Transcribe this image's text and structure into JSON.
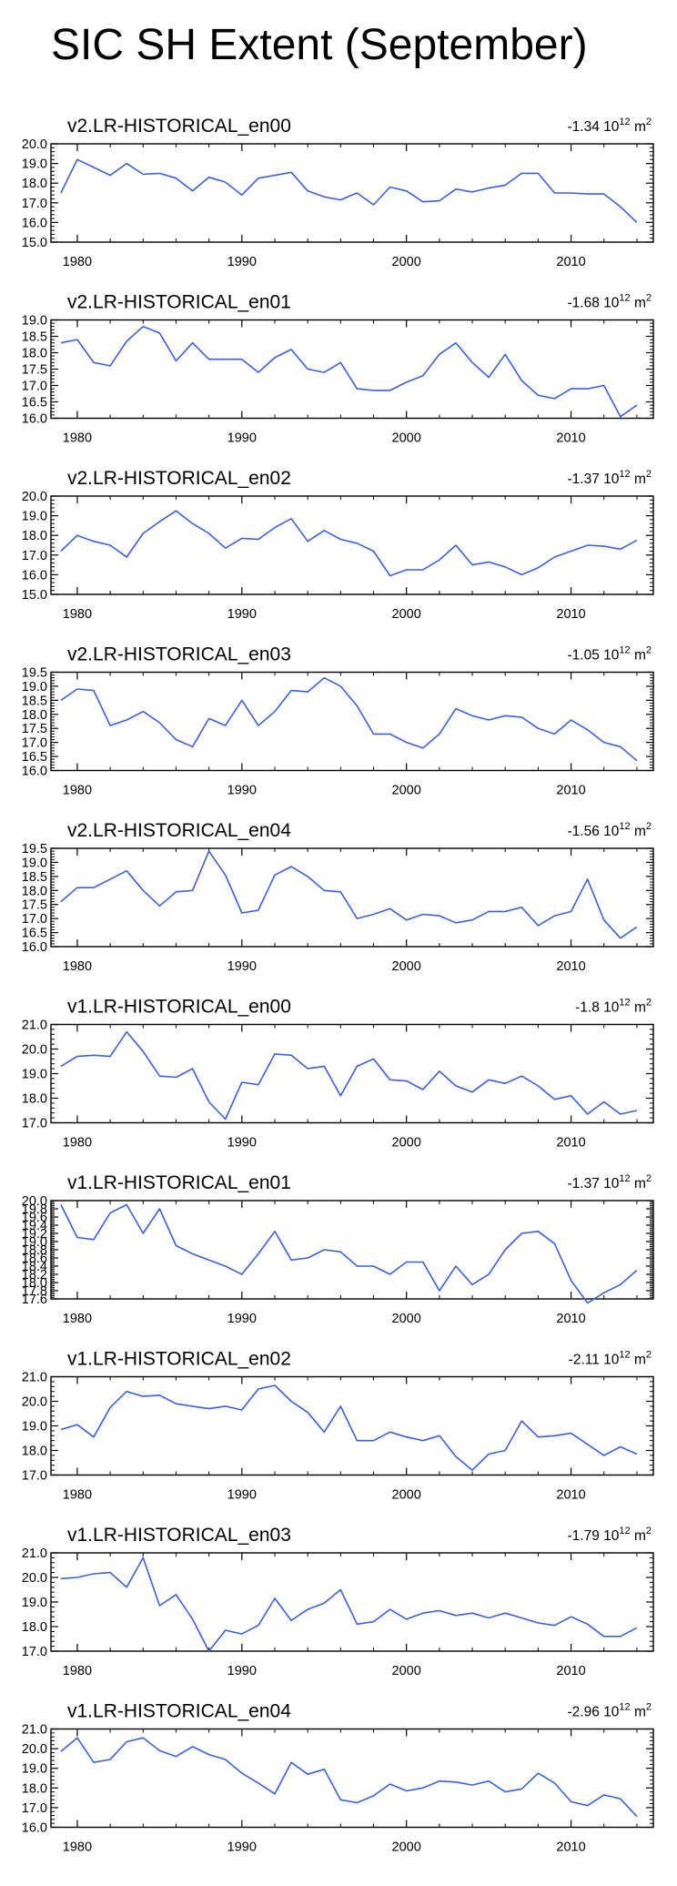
{
  "page_title": "SIC SH Extent (September)",
  "colors": {
    "line": "#3b5fe0",
    "axis": "#000000"
  },
  "chart_data": [
    {
      "type": "line",
      "title": "v2.LR-HISTORICAL_en00",
      "trend_value": "-1.34",
      "trend_unit": "10",
      "trend_exp": "12",
      "trend_suffix": "m",
      "trend_suffix_exp": "2",
      "x": [
        1979,
        1980,
        1981,
        1982,
        1983,
        1984,
        1985,
        1986,
        1987,
        1988,
        1989,
        1990,
        1991,
        1992,
        1993,
        1994,
        1995,
        1996,
        1997,
        1998,
        1999,
        2000,
        2001,
        2002,
        2003,
        2004,
        2005,
        2006,
        2007,
        2008,
        2009,
        2010,
        2011,
        2012,
        2013,
        2014
      ],
      "y": [
        17.5,
        19.2,
        18.8,
        18.4,
        19.0,
        18.45,
        18.5,
        18.25,
        17.6,
        18.3,
        18.05,
        17.4,
        18.25,
        18.4,
        18.55,
        17.6,
        17.3,
        17.15,
        17.5,
        16.9,
        17.8,
        17.6,
        17.05,
        17.1,
        17.7,
        17.55,
        17.75,
        17.9,
        18.5,
        18.5,
        17.5,
        17.5,
        17.45,
        17.45,
        16.8,
        16.0
      ],
      "ylim": [
        15.0,
        20.0
      ],
      "yticks": [
        "15.0",
        "16.0",
        "17.0",
        "18.0",
        "19.0",
        "20.0"
      ],
      "xticks": [
        "1980",
        "1990",
        "2000",
        "2010"
      ]
    },
    {
      "type": "line",
      "title": "v2.LR-HISTORICAL_en01",
      "trend_value": "-1.68",
      "trend_unit": "10",
      "trend_exp": "12",
      "trend_suffix": "m",
      "trend_suffix_exp": "2",
      "x": [
        1979,
        1980,
        1981,
        1982,
        1983,
        1984,
        1985,
        1986,
        1987,
        1988,
        1989,
        1990,
        1991,
        1992,
        1993,
        1994,
        1995,
        1996,
        1997,
        1998,
        1999,
        2000,
        2001,
        2002,
        2003,
        2004,
        2005,
        2006,
        2007,
        2008,
        2009,
        2010,
        2011,
        2012,
        2013,
        2014
      ],
      "y": [
        18.3,
        18.4,
        17.7,
        17.6,
        18.35,
        18.8,
        18.6,
        17.75,
        18.3,
        17.8,
        17.8,
        17.8,
        17.4,
        17.85,
        18.1,
        17.5,
        17.4,
        17.7,
        16.9,
        16.85,
        16.85,
        17.1,
        17.3,
        17.95,
        18.3,
        17.7,
        17.25,
        17.95,
        17.15,
        16.7,
        16.6,
        16.9,
        16.9,
        17.0,
        16.05,
        16.4
      ],
      "ylim": [
        16.0,
        19.0
      ],
      "yticks": [
        "16.0",
        "16.5",
        "17.0",
        "17.5",
        "18.0",
        "18.5",
        "19.0"
      ],
      "xticks": [
        "1980",
        "1990",
        "2000",
        "2010"
      ]
    },
    {
      "type": "line",
      "title": "v2.LR-HISTORICAL_en02",
      "trend_value": "-1.37",
      "trend_unit": "10",
      "trend_exp": "12",
      "trend_suffix": "m",
      "trend_suffix_exp": "2",
      "x": [
        1979,
        1980,
        1981,
        1982,
        1983,
        1984,
        1985,
        1986,
        1987,
        1988,
        1989,
        1990,
        1991,
        1992,
        1993,
        1994,
        1995,
        1996,
        1997,
        1998,
        1999,
        2000,
        2001,
        2002,
        2003,
        2004,
        2005,
        2006,
        2007,
        2008,
        2009,
        2010,
        2011,
        2012,
        2013,
        2014
      ],
      "y": [
        17.2,
        18.0,
        17.7,
        17.5,
        16.9,
        18.1,
        18.7,
        19.25,
        18.6,
        18.1,
        17.35,
        17.85,
        17.8,
        18.4,
        18.85,
        17.7,
        18.25,
        17.8,
        17.6,
        17.2,
        15.95,
        16.25,
        16.25,
        16.75,
        17.5,
        16.5,
        16.65,
        16.4,
        16.0,
        16.35,
        16.9,
        17.2,
        17.5,
        17.45,
        17.3,
        17.75
      ],
      "ylim": [
        15.0,
        20.0
      ],
      "yticks": [
        "15.0",
        "16.0",
        "17.0",
        "18.0",
        "19.0",
        "20.0"
      ],
      "xticks": [
        "1980",
        "1990",
        "2000",
        "2010"
      ]
    },
    {
      "type": "line",
      "title": "v2.LR-HISTORICAL_en03",
      "trend_value": "-1.05",
      "trend_unit": "10",
      "trend_exp": "12",
      "trend_suffix": "m",
      "trend_suffix_exp": "2",
      "x": [
        1979,
        1980,
        1981,
        1982,
        1983,
        1984,
        1985,
        1986,
        1987,
        1988,
        1989,
        1990,
        1991,
        1992,
        1993,
        1994,
        1995,
        1996,
        1997,
        1998,
        1999,
        2000,
        2001,
        2002,
        2003,
        2004,
        2005,
        2006,
        2007,
        2008,
        2009,
        2010,
        2011,
        2012,
        2013,
        2014
      ],
      "y": [
        18.5,
        18.9,
        18.85,
        17.6,
        17.8,
        18.1,
        17.7,
        17.1,
        16.85,
        17.85,
        17.6,
        18.5,
        17.6,
        18.1,
        18.85,
        18.8,
        19.3,
        19.0,
        18.3,
        17.3,
        17.3,
        17.0,
        16.8,
        17.3,
        18.2,
        17.95,
        17.8,
        17.95,
        17.9,
        17.5,
        17.3,
        17.8,
        17.45,
        17.0,
        16.85,
        16.35
      ],
      "ylim": [
        16.0,
        19.5
      ],
      "yticks": [
        "16.0",
        "16.5",
        "17.0",
        "17.5",
        "18.0",
        "18.5",
        "19.0",
        "19.5"
      ],
      "xticks": [
        "1980",
        "1990",
        "2000",
        "2010"
      ]
    },
    {
      "type": "line",
      "title": "v2.LR-HISTORICAL_en04",
      "trend_value": "-1.56",
      "trend_unit": "10",
      "trend_exp": "12",
      "trend_suffix": "m",
      "trend_suffix_exp": "2",
      "x": [
        1979,
        1980,
        1981,
        1982,
        1983,
        1984,
        1985,
        1986,
        1987,
        1988,
        1989,
        1990,
        1991,
        1992,
        1993,
        1994,
        1995,
        1996,
        1997,
        1998,
        1999,
        2000,
        2001,
        2002,
        2003,
        2004,
        2005,
        2006,
        2007,
        2008,
        2009,
        2010,
        2011,
        2012,
        2013,
        2014
      ],
      "y": [
        17.6,
        18.1,
        18.1,
        18.4,
        18.7,
        18.0,
        17.45,
        17.95,
        18.0,
        19.4,
        18.55,
        17.2,
        17.3,
        18.55,
        18.85,
        18.5,
        18.0,
        17.95,
        17.0,
        17.15,
        17.35,
        16.95,
        17.15,
        17.1,
        16.85,
        16.95,
        17.25,
        17.25,
        17.4,
        16.75,
        17.1,
        17.25,
        18.4,
        16.95,
        16.3,
        16.7
      ],
      "ylim": [
        16.0,
        19.5
      ],
      "yticks": [
        "16.0",
        "16.5",
        "17.0",
        "17.5",
        "18.0",
        "18.5",
        "19.0",
        "19.5"
      ],
      "xticks": [
        "1980",
        "1990",
        "2000",
        "2010"
      ]
    },
    {
      "type": "line",
      "title": "v1.LR-HISTORICAL_en00",
      "trend_value": "-1.8",
      "trend_unit": "10",
      "trend_exp": "12",
      "trend_suffix": "m",
      "trend_suffix_exp": "2",
      "x": [
        1979,
        1980,
        1981,
        1982,
        1983,
        1984,
        1985,
        1986,
        1987,
        1988,
        1989,
        1990,
        1991,
        1992,
        1993,
        1994,
        1995,
        1996,
        1997,
        1998,
        1999,
        2000,
        2001,
        2002,
        2003,
        2004,
        2005,
        2006,
        2007,
        2008,
        2009,
        2010,
        2011,
        2012,
        2013,
        2014
      ],
      "y": [
        19.3,
        19.7,
        19.75,
        19.7,
        20.7,
        19.9,
        18.9,
        18.85,
        19.2,
        17.85,
        17.15,
        18.65,
        18.55,
        19.8,
        19.75,
        19.2,
        19.3,
        18.1,
        19.3,
        19.6,
        18.75,
        18.7,
        18.35,
        19.1,
        18.5,
        18.25,
        18.75,
        18.6,
        18.9,
        18.5,
        17.95,
        18.1,
        17.35,
        17.85,
        17.35,
        17.5
      ],
      "ylim": [
        17.0,
        21.0
      ],
      "yticks": [
        "17.0",
        "18.0",
        "19.0",
        "20.0",
        "21.0"
      ],
      "xticks": [
        "1980",
        "1990",
        "2000",
        "2010"
      ]
    },
    {
      "type": "line",
      "title": "v1.LR-HISTORICAL_en01",
      "trend_value": "-1.37",
      "trend_unit": "10",
      "trend_exp": "12",
      "trend_suffix": "m",
      "trend_suffix_exp": "2",
      "x": [
        1979,
        1980,
        1981,
        1982,
        1983,
        1984,
        1985,
        1986,
        1987,
        1988,
        1989,
        1990,
        1991,
        1992,
        1993,
        1994,
        1995,
        1996,
        1997,
        1998,
        1999,
        2000,
        2001,
        2002,
        2003,
        2004,
        2005,
        2006,
        2007,
        2008,
        2009,
        2010,
        2011,
        2012,
        2013,
        2014
      ],
      "y": [
        19.9,
        19.1,
        19.05,
        19.7,
        19.9,
        19.2,
        19.8,
        18.9,
        18.7,
        18.55,
        18.4,
        18.2,
        18.7,
        19.25,
        18.55,
        18.6,
        18.8,
        18.75,
        18.4,
        18.4,
        18.2,
        18.5,
        18.5,
        17.8,
        18.4,
        17.95,
        18.2,
        18.8,
        19.2,
        19.25,
        18.95,
        18.05,
        17.5,
        17.75,
        17.95,
        18.3
      ],
      "ylim": [
        17.6,
        20.0
      ],
      "yticks": [
        "17.6",
        "17.8",
        "18.0",
        "18.2",
        "18.4",
        "18.6",
        "18.8",
        "19.0",
        "19.2",
        "19.4",
        "19.6",
        "19.8",
        "20.0"
      ],
      "xticks": [
        "1980",
        "1990",
        "2000",
        "2010"
      ]
    },
    {
      "type": "line",
      "title": "v1.LR-HISTORICAL_en02",
      "trend_value": "-2.11",
      "trend_unit": "10",
      "trend_exp": "12",
      "trend_suffix": "m",
      "trend_suffix_exp": "2",
      "x": [
        1979,
        1980,
        1981,
        1982,
        1983,
        1984,
        1985,
        1986,
        1987,
        1988,
        1989,
        1990,
        1991,
        1992,
        1993,
        1994,
        1995,
        1996,
        1997,
        1998,
        1999,
        2000,
        2001,
        2002,
        2003,
        2004,
        2005,
        2006,
        2007,
        2008,
        2009,
        2010,
        2011,
        2012,
        2013,
        2014
      ],
      "y": [
        18.85,
        19.05,
        18.55,
        19.75,
        20.4,
        20.2,
        20.25,
        19.9,
        19.8,
        19.7,
        19.8,
        19.65,
        20.5,
        20.65,
        20.0,
        19.55,
        18.75,
        19.8,
        18.4,
        18.4,
        18.75,
        18.55,
        18.4,
        18.6,
        17.75,
        17.2,
        17.85,
        18.0,
        19.2,
        18.55,
        18.6,
        18.7,
        18.25,
        17.8,
        18.15,
        17.85
      ],
      "ylim": [
        17.0,
        21.0
      ],
      "yticks": [
        "17.0",
        "18.0",
        "19.0",
        "20.0",
        "21.0"
      ],
      "xticks": [
        "1980",
        "1990",
        "2000",
        "2010"
      ]
    },
    {
      "type": "line",
      "title": "v1.LR-HISTORICAL_en03",
      "trend_value": "-1.79",
      "trend_unit": "10",
      "trend_exp": "12",
      "trend_suffix": "m",
      "trend_suffix_exp": "2",
      "x": [
        1979,
        1980,
        1981,
        1982,
        1983,
        1984,
        1985,
        1986,
        1987,
        1988,
        1989,
        1990,
        1991,
        1992,
        1993,
        1994,
        1995,
        1996,
        1997,
        1998,
        1999,
        2000,
        2001,
        2002,
        2003,
        2004,
        2005,
        2006,
        2007,
        2008,
        2009,
        2010,
        2011,
        2012,
        2013,
        2014
      ],
      "y": [
        19.95,
        20.0,
        20.15,
        20.2,
        19.6,
        20.8,
        18.85,
        19.3,
        18.3,
        17.0,
        17.85,
        17.7,
        18.05,
        19.15,
        18.25,
        18.7,
        18.95,
        19.5,
        18.1,
        18.2,
        18.7,
        18.3,
        18.55,
        18.65,
        18.45,
        18.55,
        18.35,
        18.55,
        18.35,
        18.15,
        18.05,
        18.4,
        18.1,
        17.6,
        17.6,
        17.95
      ],
      "ylim": [
        17.0,
        21.0
      ],
      "yticks": [
        "17.0",
        "18.0",
        "19.0",
        "20.0",
        "21.0"
      ],
      "xticks": [
        "1980",
        "1990",
        "2000",
        "2010"
      ]
    },
    {
      "type": "line",
      "title": "v1.LR-HISTORICAL_en04",
      "trend_value": "-2.96",
      "trend_unit": "10",
      "trend_exp": "12",
      "trend_suffix": "m",
      "trend_suffix_exp": "2",
      "x": [
        1979,
        1980,
        1981,
        1982,
        1983,
        1984,
        1985,
        1986,
        1987,
        1988,
        1989,
        1990,
        1991,
        1992,
        1993,
        1994,
        1995,
        1996,
        1997,
        1998,
        1999,
        2000,
        2001,
        2002,
        2003,
        2004,
        2005,
        2006,
        2007,
        2008,
        2009,
        2010,
        2011,
        2012,
        2013,
        2014
      ],
      "y": [
        19.85,
        20.55,
        19.3,
        19.45,
        20.35,
        20.55,
        19.9,
        19.6,
        20.1,
        19.7,
        19.45,
        18.75,
        18.25,
        17.7,
        19.3,
        18.7,
        18.95,
        17.4,
        17.25,
        17.6,
        18.2,
        17.85,
        18.0,
        18.35,
        18.3,
        18.15,
        18.35,
        17.8,
        17.95,
        18.75,
        18.25,
        17.3,
        17.1,
        17.65,
        17.45,
        16.55
      ],
      "ylim": [
        16.0,
        21.0
      ],
      "yticks": [
        "16.0",
        "17.0",
        "18.0",
        "19.0",
        "20.0",
        "21.0"
      ],
      "xticks": [
        "1980",
        "1990",
        "2000",
        "2010"
      ]
    }
  ]
}
